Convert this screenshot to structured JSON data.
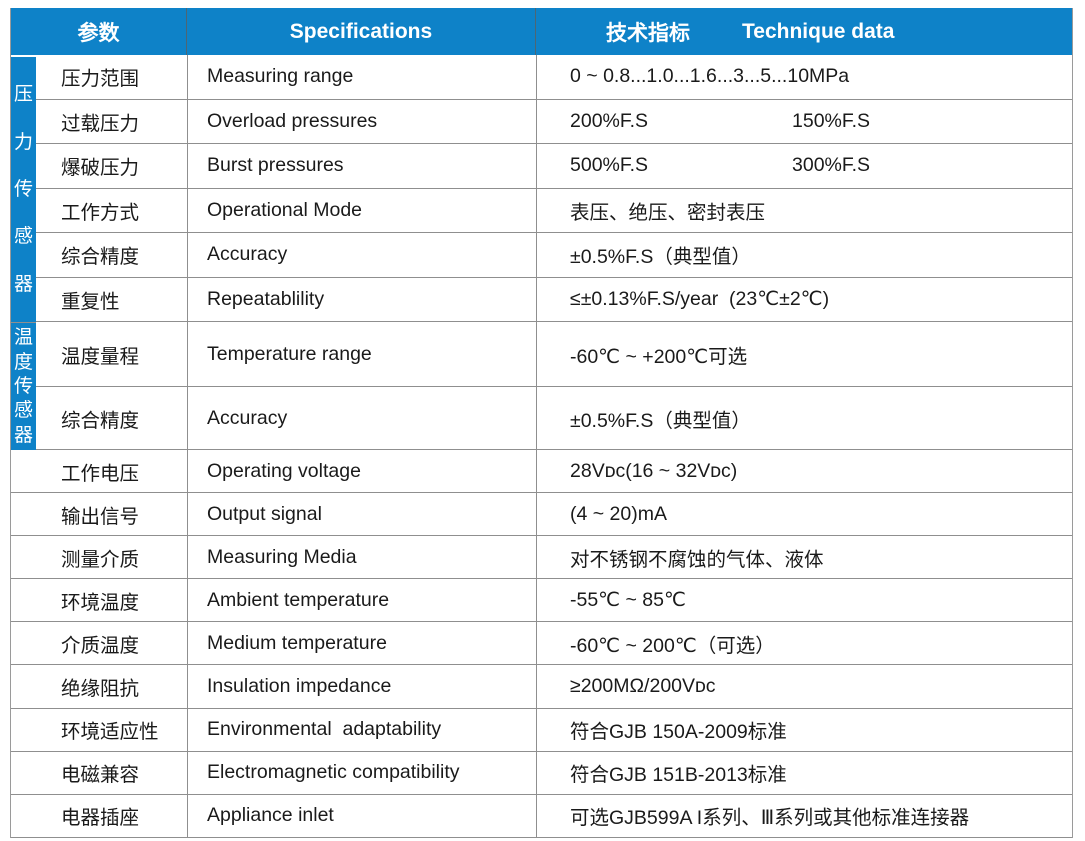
{
  "accent_color": "#0E82C8",
  "grid_line_color": "#8f8f8f",
  "header": {
    "col_param": "参数",
    "col_spec": "Specifications",
    "col_tech_zh": "技术指标",
    "col_tech_en": "Technique data"
  },
  "groups": [
    {
      "id": "pressure-sensor",
      "label": "压力传感器",
      "row_span": [
        0,
        5
      ]
    },
    {
      "id": "temperature-sensor",
      "label": "温度传感器",
      "row_span": [
        6,
        7
      ]
    }
  ],
  "table": {
    "rows": [
      {
        "zh": "压力范围",
        "en": "Measuring range",
        "value": "0 ~ 0.8...1.0...1.6...3...5...10MPa"
      },
      {
        "zh": "过载压力",
        "en": "Overload pressures",
        "value": "200%F.S",
        "value2": "150%F.S"
      },
      {
        "zh": "爆破压力",
        "en": "Burst pressures",
        "value": "500%F.S",
        "value2": "300%F.S"
      },
      {
        "zh": "工作方式",
        "en": "Operational Mode",
        "value": "表压、绝压、密封表压"
      },
      {
        "zh": "综合精度",
        "en": "Accuracy",
        "value": "±0.5%F.S（典型值）"
      },
      {
        "zh": "重复性",
        "en": "Repeatablility",
        "value": "≤±0.13%F.S/year  (23℃±2℃)"
      },
      {
        "zh": "温度量程",
        "en": "Temperature range",
        "value": "-60℃ ~ +200℃可选"
      },
      {
        "zh": "综合精度",
        "en": "Accuracy",
        "value": "±0.5%F.S（典型值）"
      },
      {
        "zh": "工作电压",
        "en": "Operating voltage",
        "value": "28Vᴅᴄ(16 ~ 32Vᴅᴄ)"
      },
      {
        "zh": "输出信号",
        "en": "Output signal",
        "value": "(4 ~ 20)mA"
      },
      {
        "zh": "测量介质",
        "en": "Measuring Media",
        "value": "对不锈钢不腐蚀的气体、液体"
      },
      {
        "zh": "环境温度",
        "en": "Ambient temperature",
        "value": "-55℃ ~ 85℃"
      },
      {
        "zh": "介质温度",
        "en": "Medium temperature",
        "value": "-60℃ ~ 200℃（可选）"
      },
      {
        "zh": "绝缘阻抗",
        "en": "Insulation impedance",
        "value": "≥200MΩ/200Vᴅᴄ"
      },
      {
        "zh": "环境适应性",
        "en": "Environmental  adaptability",
        "value": "符合GJB 150A-2009标准"
      },
      {
        "zh": "电磁兼容",
        "en": "Electromagnetic compatibility",
        "value": "符合GJB 151B-2013标准"
      },
      {
        "zh": "电器插座",
        "en": "Appliance inlet",
        "value": "可选GJB599A I系列、Ⅲ系列或其他标准连接器"
      }
    ]
  }
}
